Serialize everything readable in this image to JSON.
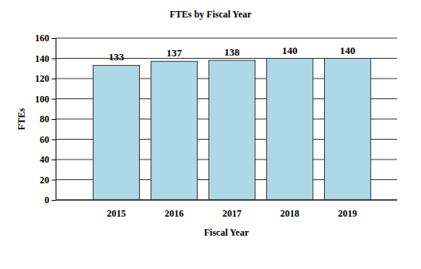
{
  "chart_data": {
    "type": "bar",
    "title": "FTEs by Fiscal Year",
    "x_label": "Fiscal Year",
    "y_label": "FTEs",
    "categories": [
      "2015",
      "2016",
      "2017",
      "2018",
      "2019"
    ],
    "values": [
      133,
      137,
      138,
      140,
      140
    ],
    "color": "#add8e6",
    "ylim": [
      0,
      160
    ],
    "yticks": [
      0,
      20,
      40,
      60,
      80,
      100,
      120,
      140,
      160
    ],
    "grid": true,
    "data_labels": true
  }
}
